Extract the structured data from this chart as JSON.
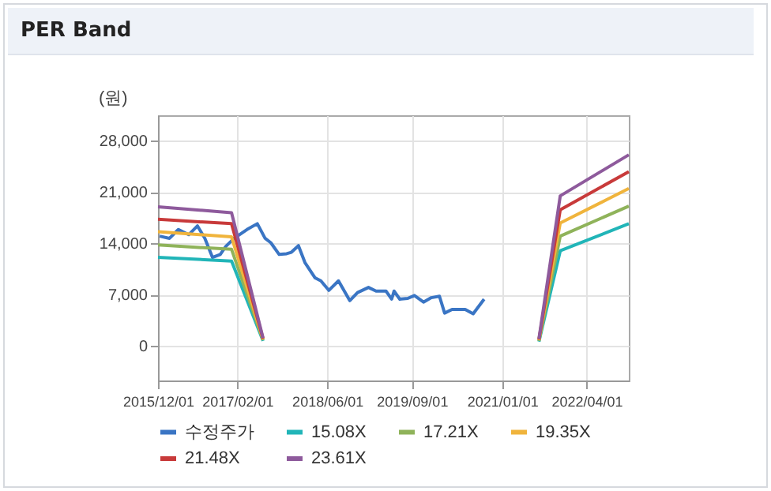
{
  "chart_data": {
    "type": "line",
    "title": "PER Band",
    "ylabel": "(원)",
    "legend": "bottom",
    "grid": true,
    "marker": "none",
    "line_style": "solid",
    "xlim": [
      "2015-12-01",
      "2022-11-15"
    ],
    "xticks": [
      {
        "value": "2015-12-01",
        "label": "2015/12/01"
      },
      {
        "value": "2017-02-01",
        "label": "2017/02/01"
      },
      {
        "value": "2018-06-01",
        "label": "2018/06/01"
      },
      {
        "value": "2019-09-01",
        "label": "2019/09/01"
      },
      {
        "value": "2021-01-01",
        "label": "2021/01/01"
      },
      {
        "value": "2022-04-01",
        "label": "2022/04/01"
      }
    ],
    "ylim": [
      -4700,
      31500
    ],
    "yticks": [
      {
        "value": 0,
        "label": "0"
      },
      {
        "value": 7000,
        "label": "7,000"
      },
      {
        "value": 14000,
        "label": "14,000"
      },
      {
        "value": 21000,
        "label": "21,000"
      },
      {
        "value": 28000,
        "label": "28,000"
      }
    ],
    "series": [
      {
        "name": "수정주가",
        "color": "#3a75c4",
        "x": [
          "2015-12-10",
          "2016-02-01",
          "2016-03-20",
          "2016-05-15",
          "2016-07-01",
          "2016-08-10",
          "2016-09-20",
          "2016-11-01",
          "2016-12-01",
          "2017-01-15",
          "2017-03-25",
          "2017-05-20",
          "2017-07-01",
          "2017-08-01",
          "2017-09-15",
          "2017-10-25",
          "2017-11-20",
          "2017-12-28",
          "2018-02-01",
          "2018-03-28",
          "2018-04-28",
          "2018-06-10",
          "2018-08-01",
          "2018-10-01",
          "2018-11-12",
          "2019-01-10",
          "2019-02-20",
          "2019-04-15",
          "2019-05-15",
          "2019-05-28",
          "2019-06-28",
          "2019-08-10",
          "2019-09-15",
          "2019-11-03",
          "2019-12-15",
          "2020-01-28",
          "2020-02-25",
          "2020-04-05",
          "2020-06-15",
          "2020-07-28",
          "2020-09-25"
        ],
        "values": [
          15000,
          14700,
          15900,
          15200,
          16400,
          14700,
          12100,
          12500,
          13600,
          14700,
          15900,
          16700,
          14700,
          14100,
          12500,
          12600,
          12800,
          13700,
          11400,
          9300,
          8900,
          7600,
          8900,
          6200,
          7300,
          8000,
          7500,
          7500,
          6400,
          7500,
          6400,
          6500,
          6900,
          6000,
          6600,
          6800,
          4500,
          5000,
          5000,
          4400,
          6400
        ]
      },
      {
        "name": "15.08X",
        "color": "#21b5b8",
        "x": [
          "2015-12-01",
          "2017-01-01",
          "2017-06-20",
          "2019-01-01",
          "2021-07-18",
          "2021-11-10",
          "2022-11-15"
        ],
        "values": [
          12100,
          11600,
          700,
          null,
          600,
          13000,
          16700
        ]
      },
      {
        "name": "17.21X",
        "color": "#8fb35a",
        "x": [
          "2015-12-01",
          "2017-01-01",
          "2017-06-20",
          "2019-01-01",
          "2021-07-18",
          "2021-11-10",
          "2022-11-15"
        ],
        "values": [
          13800,
          13200,
          800,
          null,
          700,
          15000,
          19100
        ]
      },
      {
        "name": "19.35X",
        "color": "#f0b43c",
        "x": [
          "2015-12-01",
          "2017-01-01",
          "2017-06-20",
          "2019-01-01",
          "2021-07-18",
          "2021-11-10",
          "2022-11-15"
        ],
        "values": [
          15600,
          14900,
          900,
          null,
          800,
          16800,
          21500
        ]
      },
      {
        "name": "21.48X",
        "color": "#c83a3a",
        "x": [
          "2015-12-01",
          "2017-01-01",
          "2017-06-20",
          "2019-01-01",
          "2021-07-18",
          "2021-11-10",
          "2022-11-15"
        ],
        "values": [
          17300,
          16700,
          1000,
          null,
          900,
          18600,
          23800
        ]
      },
      {
        "name": "23.61X",
        "color": "#8e5a9c",
        "x": [
          "2015-12-01",
          "2017-01-01",
          "2017-06-20",
          "2019-01-01",
          "2021-07-18",
          "2021-11-10",
          "2022-11-15"
        ],
        "values": [
          19000,
          18200,
          1100,
          null,
          1000,
          20500,
          26100
        ]
      }
    ]
  }
}
